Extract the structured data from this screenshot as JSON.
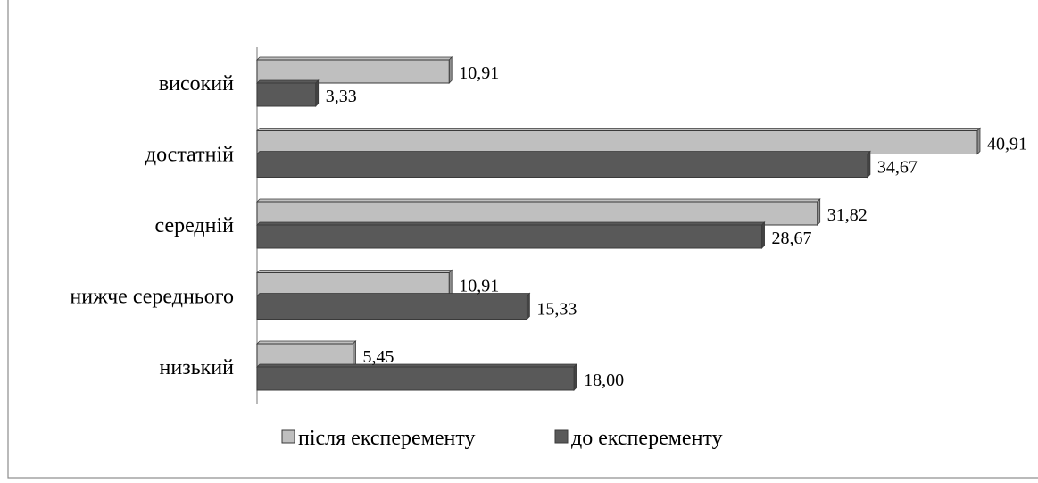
{
  "chart_data": {
    "type": "bar",
    "orientation": "horizontal",
    "categories": [
      "високий",
      "достатній",
      "середній",
      "нижче середнього",
      "низький"
    ],
    "series": [
      {
        "name": "після експеременту",
        "values": [
          10.91,
          40.91,
          31.82,
          10.91,
          5.45
        ],
        "labels": [
          "10,91",
          "40,91",
          "31,82",
          "10,91",
          "5,45"
        ],
        "color": "#bfbfbf"
      },
      {
        "name": "до експеременту",
        "values": [
          3.33,
          34.67,
          28.67,
          15.33,
          18.0
        ],
        "labels": [
          "3,33",
          "34,67",
          "28,67",
          "15,33",
          "18,00"
        ],
        "color": "#595959"
      }
    ],
    "xlim": [
      0,
      43
    ],
    "legend_position": "bottom",
    "grid": false,
    "bar_style": "3d"
  }
}
